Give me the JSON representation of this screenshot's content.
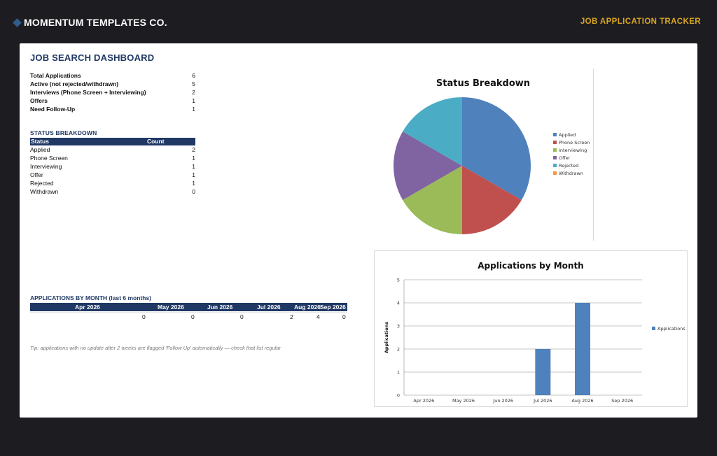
{
  "header": {
    "brand": "MOMENTUM TEMPLATES CO.",
    "brand_icon": "diamond-logo-icon",
    "app_title": "JOB APPLICATION TRACKER"
  },
  "dashboard": {
    "title": "JOB SEARCH DASHBOARD",
    "summary": [
      {
        "label": "Total Applications",
        "value": "6"
      },
      {
        "label": "Active (not rejected/withdrawn)",
        "value": "5"
      },
      {
        "label": "Interviews (Phone Screen + Interviewing)",
        "value": "2"
      },
      {
        "label": "Offers",
        "value": "1"
      },
      {
        "label": "Need Follow-Up",
        "value": "1"
      }
    ],
    "status_breakdown": {
      "title": "STATUS BREAKDOWN",
      "headers": [
        "Status",
        "Count"
      ],
      "rows": [
        {
          "status": "Applied",
          "count": "2"
        },
        {
          "status": "Phone Screen",
          "count": "1"
        },
        {
          "status": "Interviewing",
          "count": "1"
        },
        {
          "status": "Offer",
          "count": "1"
        },
        {
          "status": "Rejected",
          "count": "1"
        },
        {
          "status": "Withdrawn",
          "count": "0"
        }
      ]
    },
    "by_month": {
      "title": "APPLICATIONS BY MONTH (last 6 months)",
      "months": [
        "Apr 2026",
        "May 2026",
        "Jun 2026",
        "Jul 2026",
        "Aug 2026",
        "Sep 2026"
      ],
      "values": [
        "0",
        "0",
        "0",
        "2",
        "4",
        "0"
      ]
    },
    "tip": "Tip: applications with no update after 2 weeks are flagged 'Follow Up' automatically — check that list regular"
  },
  "chart_data": [
    {
      "type": "pie",
      "title": "Status Breakdown",
      "categories": [
        "Applied",
        "Phone Screen",
        "Interviewing",
        "Offer",
        "Rejected",
        "Withdrawn"
      ],
      "values": [
        2,
        1,
        1,
        1,
        1,
        0
      ],
      "colors": [
        "#4f81bd",
        "#c0504d",
        "#9bbb59",
        "#8064a2",
        "#4bacc6",
        "#f79646"
      ],
      "legend": "right"
    },
    {
      "type": "bar",
      "title": "Applications by Month",
      "categories": [
        "Apr 2026",
        "May 2026",
        "Jun 2026",
        "Jul 2026",
        "Aug 2026",
        "Sep 2026"
      ],
      "series": [
        {
          "name": "Applications",
          "values": [
            0,
            0,
            0,
            2,
            4,
            0
          ]
        }
      ],
      "ylabel": "Applications",
      "ylim": [
        0,
        5
      ],
      "yticks": [
        "0",
        "1",
        "2",
        "3",
        "4",
        "5"
      ],
      "grid": true,
      "color": "#4f81bd",
      "legend": "right"
    }
  ]
}
